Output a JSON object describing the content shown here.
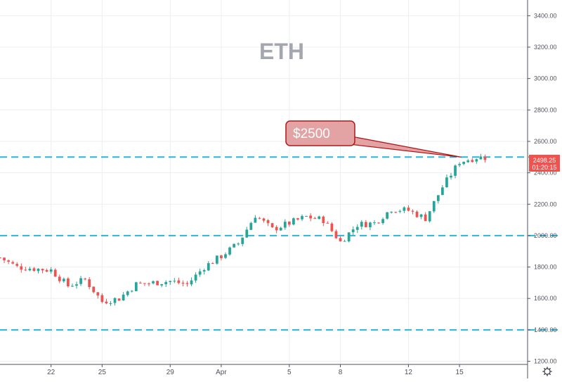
{
  "chart_data": {
    "type": "candlestick",
    "symbol_watermark": "ETH",
    "y_axis": {
      "position": "right",
      "range": [
        1180,
        3500
      ],
      "ticks": [
        1200,
        1400,
        1600,
        1800,
        2000,
        2200,
        2400,
        2600,
        2800,
        3000,
        3200,
        3400
      ],
      "tick_labels": [
        "1200.00",
        "1400.00",
        "1600.00",
        "1800.00",
        "2000.00",
        "2200.00",
        "2400.00",
        "2600.00",
        "2800.00",
        "3000.00",
        "3200.00",
        "3400.00"
      ]
    },
    "x_axis": {
      "unit": "day",
      "range": [
        "2021-03-19",
        "2021-04-19"
      ],
      "ticks": [
        {
          "date": "2021-03-22",
          "label": "22"
        },
        {
          "date": "2021-03-25",
          "label": "25"
        },
        {
          "date": "2021-03-29",
          "label": "29"
        },
        {
          "date": "2021-04-01",
          "label": "Apr"
        },
        {
          "date": "2021-04-05",
          "label": "5"
        },
        {
          "date": "2021-04-08",
          "label": "8"
        },
        {
          "date": "2021-04-12",
          "label": "12"
        },
        {
          "date": "2021-04-15",
          "label": "15"
        }
      ]
    },
    "grid": true,
    "horizontal_levels": [
      2500,
      2000,
      1400
    ],
    "level_color": "#29b6d8",
    "up_color": "#26a69a",
    "down_color": "#ef5350",
    "price_label": {
      "price": "2498.25",
      "countdown": "01:20:15",
      "color": "#ef5350"
    },
    "callout": {
      "text": "$2500",
      "fill": "#e3a3a5",
      "stroke": "#b01818",
      "text_color": "#ffffff",
      "target_date": "2021-04-15",
      "target_price": 2500
    },
    "price_path": [
      {
        "date": "2021-03-19",
        "price": 1860
      },
      {
        "date": "2021-03-20",
        "price": 1800
      },
      {
        "date": "2021-03-21",
        "price": 1790
      },
      {
        "date": "2021-03-22",
        "price": 1780
      },
      {
        "date": "2021-03-23",
        "price": 1680
      },
      {
        "date": "2021-03-24",
        "price": 1720
      },
      {
        "date": "2021-03-25",
        "price": 1580
      },
      {
        "date": "2021-03-26",
        "price": 1600
      },
      {
        "date": "2021-03-27",
        "price": 1690
      },
      {
        "date": "2021-03-28",
        "price": 1700
      },
      {
        "date": "2021-03-29",
        "price": 1710
      },
      {
        "date": "2021-03-30",
        "price": 1690
      },
      {
        "date": "2021-03-31",
        "price": 1800
      },
      {
        "date": "2021-04-01",
        "price": 1870
      },
      {
        "date": "2021-04-02",
        "price": 1950
      },
      {
        "date": "2021-04-03",
        "price": 2130
      },
      {
        "date": "2021-04-04",
        "price": 2040
      },
      {
        "date": "2021-04-05",
        "price": 2080
      },
      {
        "date": "2021-04-06",
        "price": 2120
      },
      {
        "date": "2021-04-07",
        "price": 2100
      },
      {
        "date": "2021-04-08",
        "price": 1960
      },
      {
        "date": "2021-04-09",
        "price": 2070
      },
      {
        "date": "2021-04-10",
        "price": 2080
      },
      {
        "date": "2021-04-11",
        "price": 2170
      },
      {
        "date": "2021-04-12",
        "price": 2160
      },
      {
        "date": "2021-04-13",
        "price": 2110
      },
      {
        "date": "2021-04-14",
        "price": 2310
      },
      {
        "date": "2021-04-15",
        "price": 2470
      },
      {
        "date": "2021-04-16",
        "price": 2498
      }
    ],
    "candles_per_day": 4,
    "candle_noise": 22,
    "seed": 7
  }
}
